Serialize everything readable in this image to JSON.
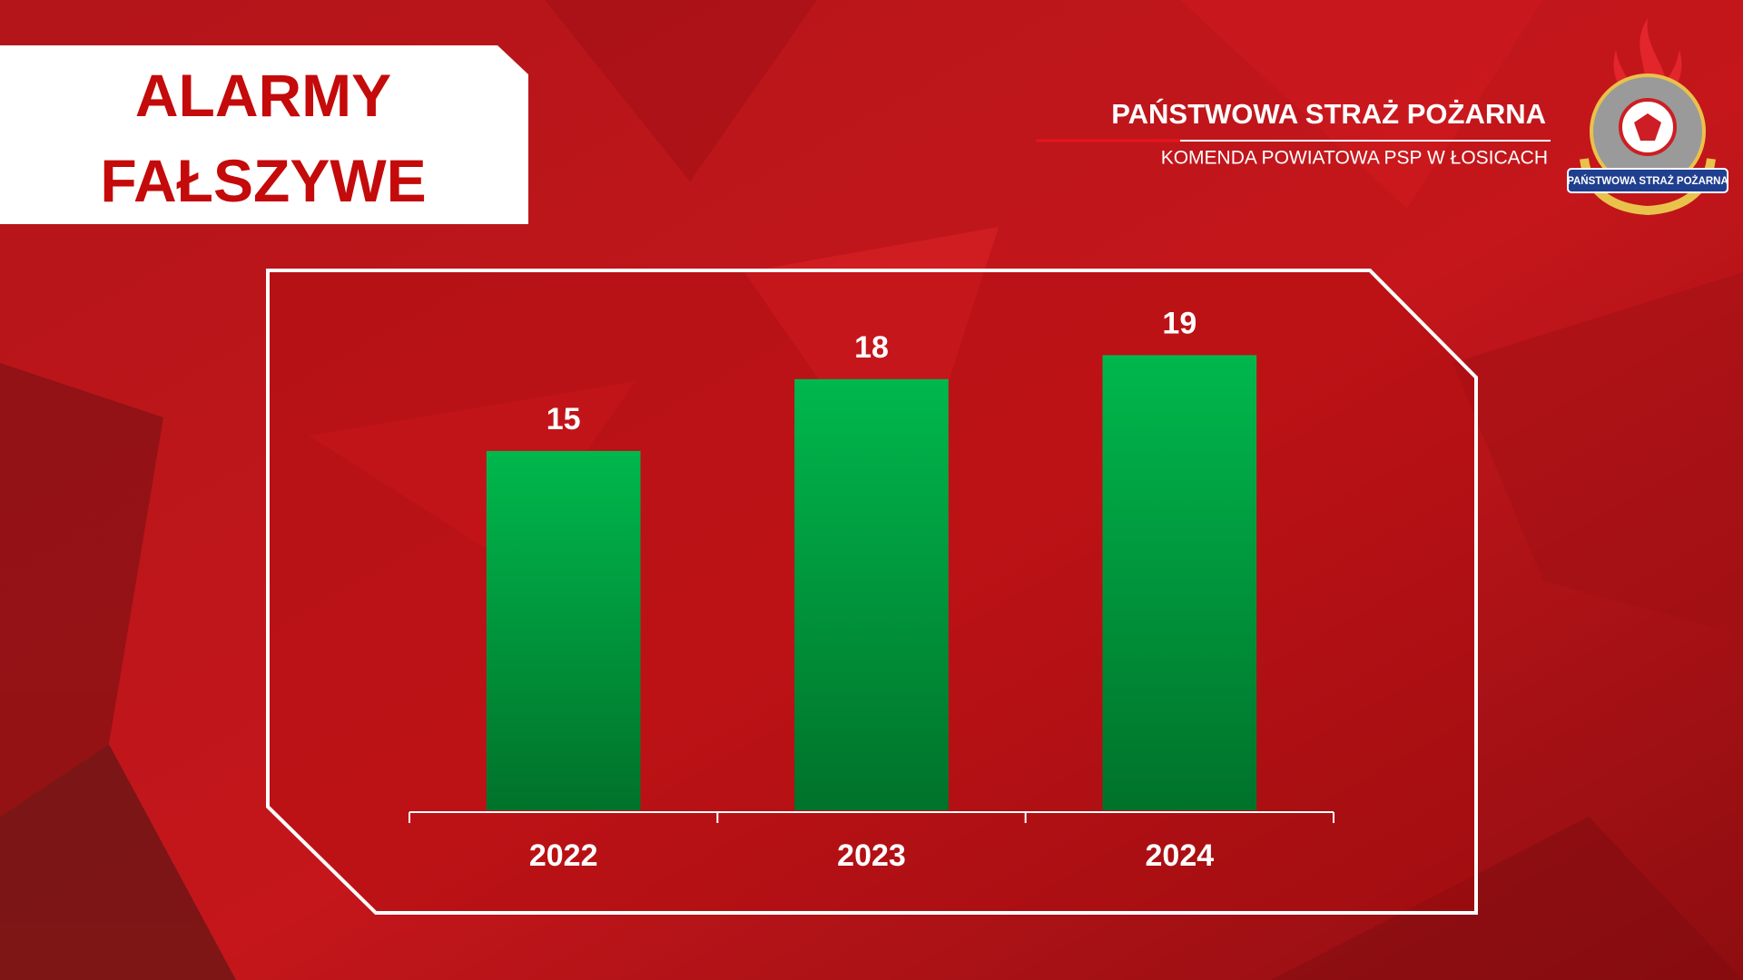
{
  "header": {
    "title": "PAŃSTWOWA STRAŻ POŻARNA",
    "subtitle": "KOMENDA POWIATOWA PSP W ŁOSICACH"
  },
  "chart_data": {
    "type": "bar",
    "title": "ALARMY FAŁSZYWE",
    "categories": [
      "2022",
      "2023",
      "2024"
    ],
    "values": [
      15,
      18,
      19
    ],
    "color": "#00a844",
    "ylim": [
      0,
      20
    ]
  }
}
